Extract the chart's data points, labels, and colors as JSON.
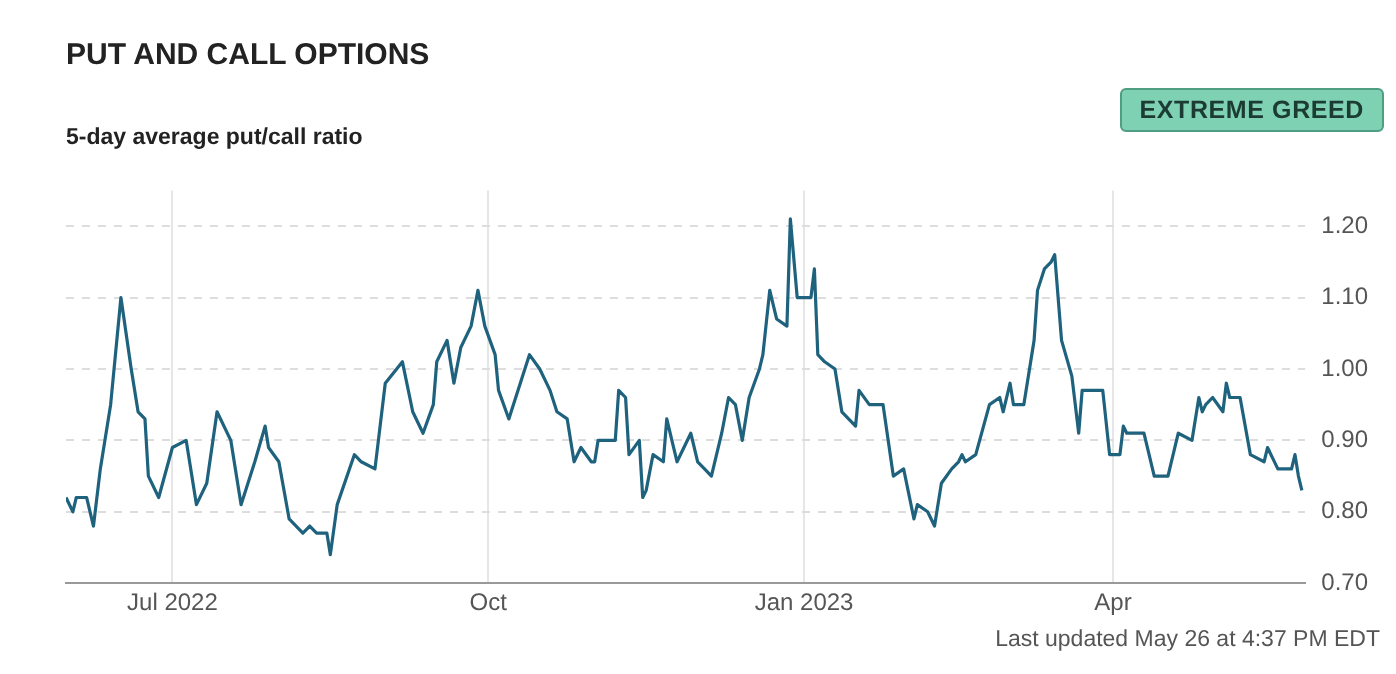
{
  "chart_data": {
    "type": "line",
    "title": "PUT AND CALL OPTIONS",
    "subtitle": "5-day average put/call ratio",
    "annotations": [
      "EXTREME GREED",
      "Last updated May 26 at 4:37 PM EDT"
    ],
    "x": [
      "2022-05-31",
      "2022-06-02",
      "2022-06-03",
      "2022-06-06",
      "2022-06-08",
      "2022-06-10",
      "2022-06-13",
      "2022-06-16",
      "2022-06-19",
      "2022-06-21",
      "2022-06-23",
      "2022-06-24",
      "2022-06-27",
      "2022-07-01",
      "2022-07-05",
      "2022-07-08",
      "2022-07-11",
      "2022-07-14",
      "2022-07-18",
      "2022-07-21",
      "2022-07-25",
      "2022-07-28",
      "2022-07-29",
      "2022-08-01",
      "2022-08-04",
      "2022-08-08",
      "2022-08-10",
      "2022-08-12",
      "2022-08-15",
      "2022-08-16",
      "2022-08-18",
      "2022-08-23",
      "2022-08-25",
      "2022-08-29",
      "2022-09-01",
      "2022-09-06",
      "2022-09-09",
      "2022-09-12",
      "2022-09-15",
      "2022-09-16",
      "2022-09-19",
      "2022-09-21",
      "2022-09-23",
      "2022-09-26",
      "2022-09-28",
      "2022-09-30",
      "2022-10-03",
      "2022-10-04",
      "2022-10-07",
      "2022-10-09",
      "2022-10-13",
      "2022-10-16",
      "2022-10-19",
      "2022-10-21",
      "2022-10-24",
      "2022-10-26",
      "2022-10-28",
      "2022-10-31",
      "2022-11-01",
      "2022-11-02",
      "2022-11-05",
      "2022-11-07",
      "2022-11-08",
      "2022-11-10",
      "2022-11-11",
      "2022-11-14",
      "2022-11-15",
      "2022-11-16",
      "2022-11-18",
      "2022-11-21",
      "2022-11-22",
      "2022-11-24",
      "2022-11-25",
      "2022-11-29",
      "2022-12-01",
      "2022-12-03",
      "2022-12-05",
      "2022-12-08",
      "2022-12-10",
      "2022-12-12",
      "2022-12-14",
      "2022-12-16",
      "2022-12-19",
      "2022-12-20",
      "2022-12-22",
      "2022-12-24",
      "2022-12-27",
      "2022-12-28",
      "2022-12-30",
      "2023-01-03",
      "2023-01-04",
      "2023-01-05",
      "2023-01-07",
      "2023-01-10",
      "2023-01-12",
      "2023-01-16",
      "2023-01-17",
      "2023-01-20",
      "2023-01-22",
      "2023-01-24",
      "2023-01-27",
      "2023-01-30",
      "2023-02-02",
      "2023-02-03",
      "2023-02-06",
      "2023-02-08",
      "2023-02-10",
      "2023-02-13",
      "2023-02-15",
      "2023-02-16",
      "2023-02-17",
      "2023-02-20",
      "2023-02-24",
      "2023-02-27",
      "2023-02-28",
      "2023-03-02",
      "2023-03-03",
      "2023-03-06",
      "2023-03-09",
      "2023-03-10",
      "2023-03-12",
      "2023-03-14",
      "2023-03-15",
      "2023-03-17",
      "2023-03-20",
      "2023-03-22",
      "2023-03-23",
      "2023-03-27",
      "2023-03-29",
      "2023-03-31",
      "2023-04-03",
      "2023-04-04",
      "2023-04-05",
      "2023-04-07",
      "2023-04-10",
      "2023-04-13",
      "2023-04-17",
      "2023-04-20",
      "2023-04-24",
      "2023-04-26",
      "2023-04-27",
      "2023-04-28",
      "2023-04-30",
      "2023-05-03",
      "2023-05-04",
      "2023-05-05",
      "2023-05-08",
      "2023-05-11",
      "2023-05-15",
      "2023-05-16",
      "2023-05-19",
      "2023-05-23",
      "2023-05-24",
      "2023-05-25",
      "2023-05-26"
    ],
    "series": [
      {
        "color": "#1f627e",
        "values": [
          0.82,
          0.8,
          0.82,
          0.82,
          0.78,
          0.86,
          0.95,
          1.1,
          1.0,
          0.94,
          0.93,
          0.85,
          0.82,
          0.89,
          0.9,
          0.81,
          0.84,
          0.94,
          0.9,
          0.81,
          0.87,
          0.92,
          0.89,
          0.87,
          0.79,
          0.77,
          0.78,
          0.77,
          0.77,
          0.74,
          0.81,
          0.88,
          0.87,
          0.86,
          0.98,
          1.01,
          0.94,
          0.91,
          0.95,
          1.01,
          1.04,
          0.98,
          1.03,
          1.06,
          1.11,
          1.06,
          1.02,
          0.97,
          0.93,
          0.96,
          1.02,
          1.0,
          0.97,
          0.94,
          0.93,
          0.87,
          0.89,
          0.87,
          0.87,
          0.9,
          0.9,
          0.9,
          0.97,
          0.96,
          0.88,
          0.9,
          0.82,
          0.83,
          0.88,
          0.87,
          0.93,
          0.89,
          0.87,
          0.91,
          0.87,
          0.86,
          0.85,
          0.91,
          0.96,
          0.95,
          0.9,
          0.96,
          1.0,
          1.02,
          1.11,
          1.07,
          1.06,
          1.21,
          1.1,
          1.1,
          1.14,
          1.02,
          1.01,
          1.0,
          0.94,
          0.92,
          0.97,
          0.95,
          0.95,
          0.95,
          0.85,
          0.86,
          0.79,
          0.81,
          0.8,
          0.78,
          0.84,
          0.86,
          0.87,
          0.88,
          0.87,
          0.88,
          0.95,
          0.96,
          0.94,
          0.98,
          0.95,
          0.95,
          1.04,
          1.11,
          1.14,
          1.15,
          1.16,
          1.04,
          0.99,
          0.91,
          0.97,
          0.97,
          0.97,
          0.88,
          0.88,
          0.92,
          0.91,
          0.91,
          0.91,
          0.85,
          0.85,
          0.91,
          0.9,
          0.96,
          0.94,
          0.95,
          0.96,
          0.94,
          0.98,
          0.96,
          0.96,
          0.88,
          0.87,
          0.89,
          0.86,
          0.86,
          0.88,
          0.85,
          0.83
        ]
      }
    ],
    "xlim": [
      "2022-05-31",
      "2023-05-27"
    ],
    "xticks": [
      {
        "value": "2022-07-01",
        "label": "Jul 2022"
      },
      {
        "value": "2022-10-01",
        "label": "Oct"
      },
      {
        "value": "2023-01-01",
        "label": "Jan 2023"
      },
      {
        "value": "2023-04-01",
        "label": "Apr"
      }
    ],
    "ylim": [
      0.7,
      1.25
    ],
    "yticks": [
      {
        "value": 0.7,
        "label": "0.70"
      },
      {
        "value": 0.8,
        "label": "0.80"
      },
      {
        "value": 0.9,
        "label": "0.90"
      },
      {
        "value": 1.0,
        "label": "1.00"
      },
      {
        "value": 1.1,
        "label": "1.10"
      },
      {
        "value": 1.2,
        "label": "1.20"
      }
    ],
    "grid": true,
    "legend": false,
    "marker": "none",
    "line_style": "solid"
  }
}
